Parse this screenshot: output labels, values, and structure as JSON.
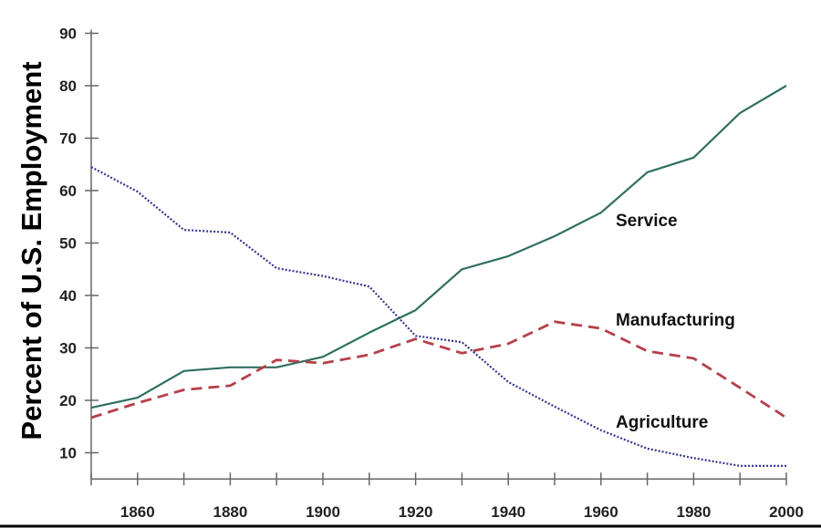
{
  "chart_data": {
    "type": "line",
    "title": "",
    "xlabel": "",
    "ylabel": "Percent of U.S. Employment",
    "xlim": [
      1850,
      2000
    ],
    "ylim": [
      5,
      90
    ],
    "grid": false,
    "x_ticks": [
      1850,
      1860,
      1870,
      1880,
      1890,
      1900,
      1910,
      1920,
      1930,
      1940,
      1950,
      1960,
      1970,
      1980,
      1990,
      2000
    ],
    "x_tick_labels": [
      "1860",
      "1880",
      "1900",
      "1920",
      "1940",
      "1960",
      "1980",
      "2000"
    ],
    "x_tick_label_values": [
      1860,
      1880,
      1900,
      1920,
      1940,
      1960,
      1980,
      2000
    ],
    "y_tick_labels": [
      "10",
      "20",
      "30",
      "40",
      "50",
      "60",
      "70",
      "80",
      "90"
    ],
    "y_tick_values": [
      10,
      20,
      30,
      40,
      50,
      60,
      70,
      80,
      90
    ],
    "x": [
      1850,
      1860,
      1870,
      1880,
      1890,
      1900,
      1910,
      1920,
      1930,
      1940,
      1950,
      1960,
      1970,
      1980,
      1990,
      2000
    ],
    "series": [
      {
        "name": "Service",
        "style": "solid",
        "color": "#2f6f5f",
        "values": [
          18.6,
          20.5,
          25.6,
          26.3,
          26.3,
          28.3,
          32.9,
          37.2,
          45.0,
          47.5,
          51.3,
          55.8,
          63.5,
          66.3,
          74.8,
          80.0
        ]
      },
      {
        "name": "Manufacturing",
        "style": "dashed",
        "color": "#b5404a",
        "values": [
          16.7,
          19.5,
          22.0,
          22.8,
          27.7,
          27.1,
          28.7,
          31.7,
          29.0,
          30.8,
          35.0,
          33.7,
          29.4,
          28.0,
          22.4,
          16.7
        ]
      },
      {
        "name": "Agriculture",
        "style": "dotted",
        "color": "#33338f",
        "values": [
          64.5,
          59.8,
          52.5,
          52.0,
          45.2,
          43.7,
          41.7,
          32.3,
          31.1,
          23.5,
          18.8,
          14.3,
          10.8,
          9.0,
          7.5,
          7.5
        ]
      }
    ],
    "legend": "inline labels at right"
  }
}
